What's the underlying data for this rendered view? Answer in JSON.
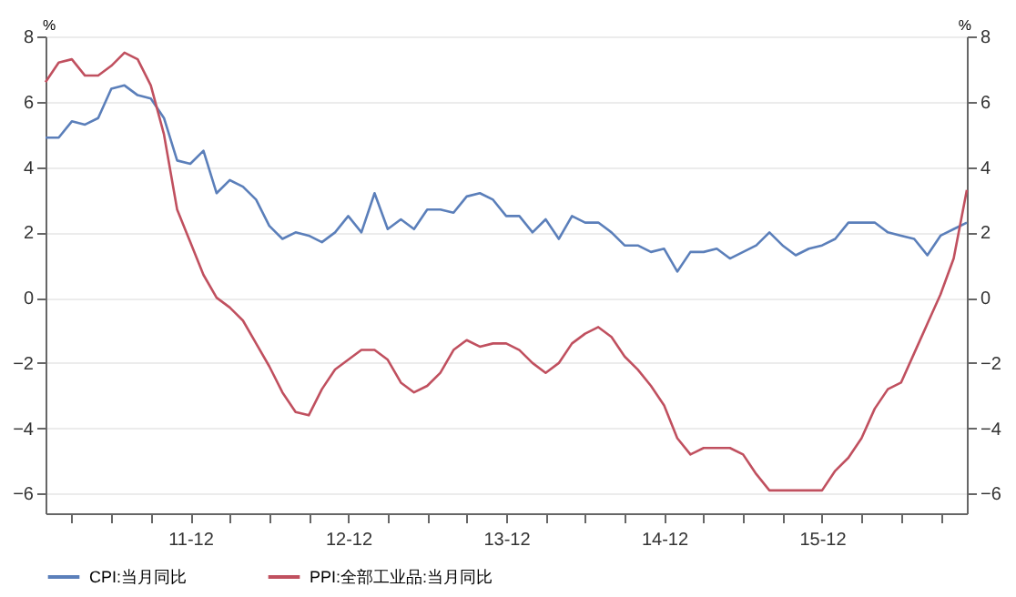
{
  "chart_data": {
    "type": "line",
    "categories": [
      null,
      null,
      null,
      null,
      null,
      null,
      null,
      null,
      null,
      null,
      null,
      "11-12",
      null,
      null,
      null,
      null,
      null,
      null,
      null,
      null,
      null,
      null,
      null,
      "12-12",
      null,
      null,
      null,
      null,
      null,
      null,
      null,
      null,
      null,
      null,
      null,
      "13-12",
      null,
      null,
      null,
      null,
      null,
      null,
      null,
      null,
      null,
      null,
      null,
      "14-12",
      null,
      null,
      null,
      null,
      null,
      null,
      null,
      null,
      null,
      null,
      null,
      "15-12",
      null,
      null,
      null,
      null,
      null,
      null,
      null,
      null,
      null,
      null,
      null
    ],
    "series": [
      {
        "name": "CPI:当月同比",
        "color": "#5b7fba",
        "values": [
          4.9,
          4.9,
          5.4,
          5.3,
          5.5,
          6.4,
          6.5,
          6.2,
          6.1,
          5.5,
          4.2,
          4.1,
          4.5,
          3.2,
          3.6,
          3.4,
          3.0,
          2.2,
          1.8,
          2.0,
          1.9,
          1.7,
          2.0,
          2.5,
          2.0,
          3.2,
          2.1,
          2.4,
          2.1,
          2.7,
          2.7,
          2.6,
          3.1,
          3.2,
          3.0,
          2.5,
          2.5,
          2.0,
          2.4,
          1.8,
          2.5,
          2.3,
          2.3,
          2.0,
          1.6,
          1.6,
          1.4,
          1.5,
          0.8,
          1.4,
          1.4,
          1.5,
          1.2,
          1.4,
          1.6,
          2.0,
          1.6,
          1.3,
          1.5,
          1.6,
          1.8,
          2.3,
          2.3,
          2.3,
          2.0,
          1.9,
          1.8,
          1.3,
          1.9,
          2.1,
          2.3
        ]
      },
      {
        "name": "PPI:全部工业品:当月同比",
        "color": "#c0505f",
        "axis": "y2",
        "values": [
          6.6,
          7.2,
          7.3,
          6.8,
          6.8,
          7.1,
          7.5,
          7.3,
          6.5,
          5.0,
          2.7,
          1.7,
          0.7,
          0.0,
          -0.3,
          -0.7,
          -1.4,
          -2.1,
          -2.9,
          -3.5,
          -3.6,
          -2.8,
          -2.2,
          -1.9,
          -1.6,
          -1.6,
          -1.9,
          -2.6,
          -2.9,
          -2.7,
          -2.3,
          -1.6,
          -1.3,
          -1.5,
          -1.4,
          -1.4,
          -1.6,
          -2.0,
          -2.3,
          -2.0,
          -1.4,
          -1.1,
          -0.9,
          -1.2,
          -1.8,
          -2.2,
          -2.7,
          -3.3,
          -4.3,
          -4.8,
          -4.6,
          -4.6,
          -4.6,
          -4.8,
          -5.4,
          -5.9,
          -5.9,
          -5.9,
          -5.9,
          -5.9,
          -5.3,
          -4.9,
          -4.3,
          -3.4,
          -2.8,
          -2.6,
          -1.7,
          -0.8,
          0.1,
          1.2,
          3.3
        ]
      }
    ],
    "ylabel": "%",
    "y2label": "%",
    "ylim": [
      -6.6,
      8
    ],
    "yticks": [
      -6,
      -4,
      -2,
      0,
      2,
      4,
      6,
      8
    ],
    "y2lim": [
      -6.6,
      8
    ],
    "y2ticks": [
      -6,
      -4,
      -2,
      0,
      2,
      4,
      6,
      8
    ],
    "grid": "y",
    "legend": "bottom",
    "marker": "none",
    "line_style": "solid"
  }
}
